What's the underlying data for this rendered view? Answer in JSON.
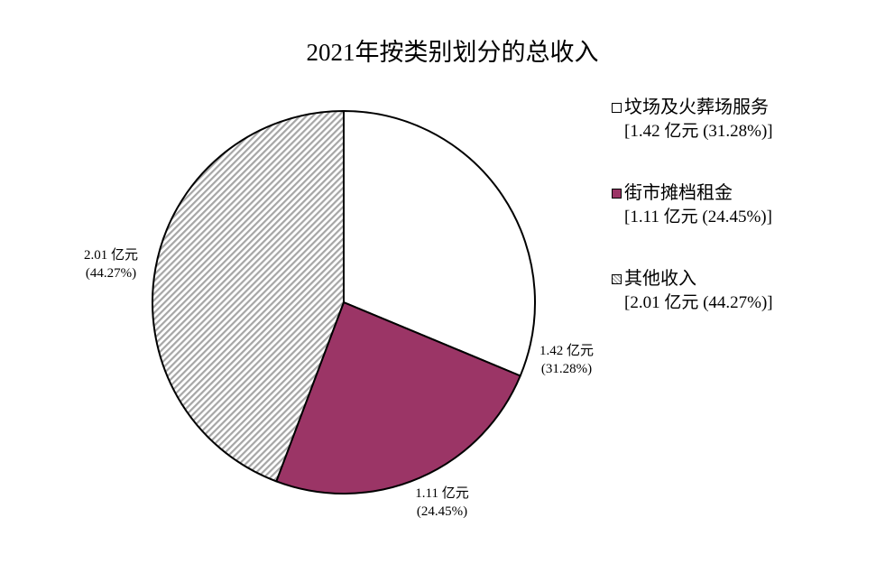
{
  "chart_data": {
    "type": "pie",
    "title": "2021年按类别划分的总收入",
    "unit": "亿元",
    "start_angle": "12 o'clock, clockwise",
    "categories": [
      "坟场及火葬场服务",
      "街市摊档租金",
      "其他收入"
    ],
    "values": [
      1.42,
      1.11,
      2.01
    ],
    "percentages": [
      31.28,
      24.45,
      44.27
    ],
    "colors": [
      "#ffffff",
      "#9b3566",
      "hatched-gray"
    ],
    "data_labels": [
      {
        "value": "1.42 亿元",
        "pct": "(31.28%)"
      },
      {
        "value": "1.11 亿元",
        "pct": "(24.45%)"
      },
      {
        "value": "2.01 亿元",
        "pct": "(44.27%)"
      }
    ],
    "legend": {
      "position": "right",
      "entries": [
        {
          "name": "坟场及火葬场服务",
          "value": "[1.42 亿元 (31.28%)]"
        },
        {
          "name": "街市摊档租金",
          "value": "[1.11 亿元 (24.45%)]"
        },
        {
          "name": "其他收入",
          "value": "[2.01 亿元 (44.27%)]"
        }
      ]
    }
  }
}
